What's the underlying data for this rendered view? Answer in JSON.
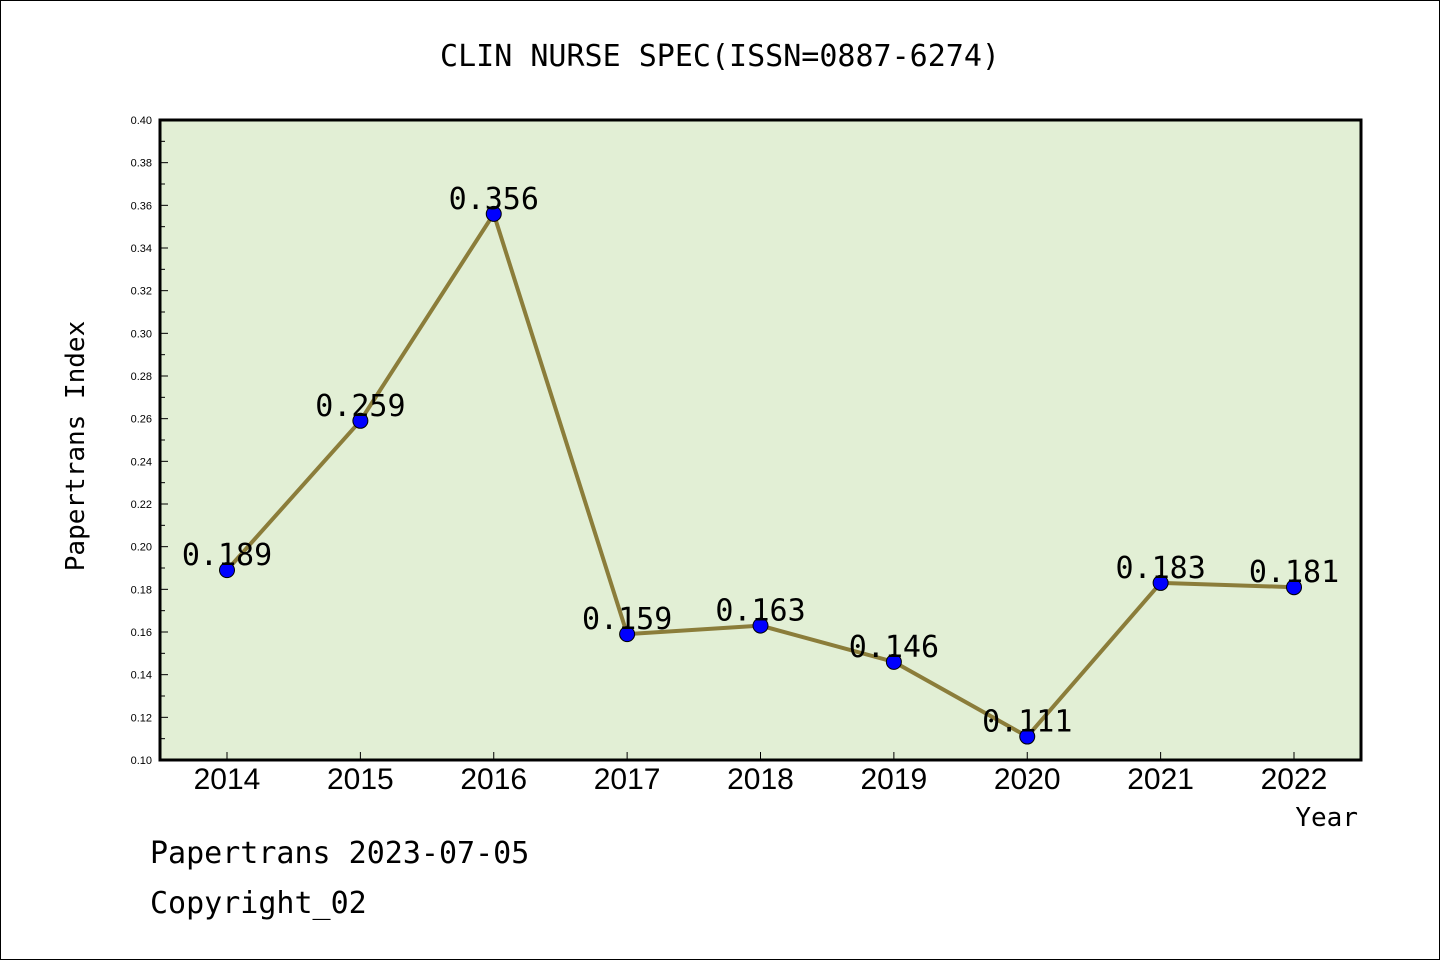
{
  "chart_data": {
    "type": "line",
    "title": "CLIN NURSE SPEC(ISSN=0887-6274)",
    "xlabel": "Year",
    "ylabel": "Papertrans Index",
    "categories": [
      "2014",
      "2015",
      "2016",
      "2017",
      "2018",
      "2019",
      "2020",
      "2021",
      "2022"
    ],
    "values": [
      0.189,
      0.259,
      0.356,
      0.159,
      0.163,
      0.146,
      0.111,
      0.183,
      0.181
    ],
    "data_labels": [
      "0.189",
      "0.259",
      "0.356",
      "0.159",
      "0.163",
      "0.146",
      "0.111",
      "0.183",
      "0.181"
    ],
    "ylim": [
      0.1,
      0.4
    ],
    "yticks": [
      "0.10",
      "0.12",
      "0.14",
      "0.16",
      "0.18",
      "0.20",
      "0.22",
      "0.24",
      "0.26",
      "0.28",
      "0.30",
      "0.32",
      "0.34",
      "0.36",
      "0.38",
      "0.40"
    ],
    "grid": false,
    "colors": {
      "plot_background": "#e2efd5",
      "line": "#8b7d3a",
      "marker": "#0000ff"
    }
  },
  "footer": {
    "line1": "Papertrans 2023-07-05",
    "line2": "Copyright_02"
  }
}
